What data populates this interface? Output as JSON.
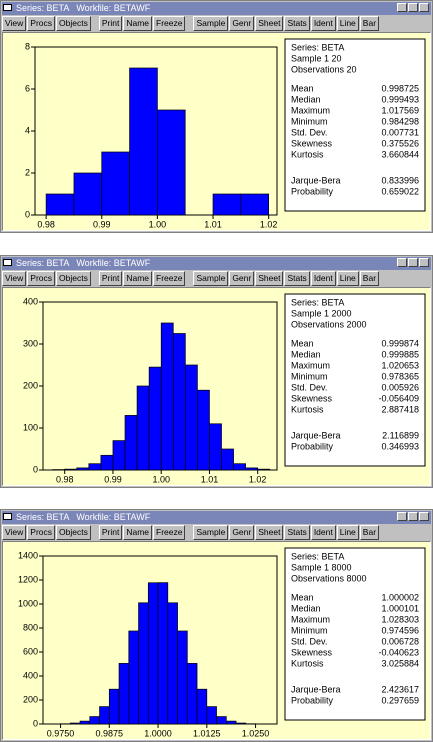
{
  "window_title": "Series: BETA   Workfile: BETAWF",
  "toolbar": [
    "View",
    "Procs",
    "Objects",
    "Print",
    "Name",
    "Freeze",
    "Sample",
    "Genr",
    "Sheet",
    "Stats",
    "Ident",
    "Line",
    "Bar"
  ],
  "windows": [
    {
      "stats": {
        "series": "Series: BETA",
        "sample": "Sample 1 20",
        "observations": "Observations 20",
        "rows": [
          [
            "Mean",
            0.998725
          ],
          [
            "Median",
            0.999493
          ],
          [
            "Maximum",
            1.017569
          ],
          [
            "Minimum",
            0.984298
          ],
          [
            "Std. Dev.",
            0.007731
          ],
          [
            "Skewness",
            0.375526
          ],
          [
            "Kurtosis",
            3.660844
          ]
        ],
        "tests": [
          [
            "Jarque-Bera",
            0.833996
          ],
          [
            "Probability",
            0.659022
          ]
        ]
      }
    },
    {
      "stats": {
        "series": "Series: BETA",
        "sample": "Sample 1 2000",
        "observations": "Observations 2000",
        "rows": [
          [
            "Mean",
            0.999874
          ],
          [
            "Median",
            0.999885
          ],
          [
            "Maximum",
            1.020653
          ],
          [
            "Minimum",
            0.978365
          ],
          [
            "Std. Dev.",
            0.005926
          ],
          [
            "Skewness",
            -0.056409
          ],
          [
            "Kurtosis",
            2.887418
          ]
        ],
        "tests": [
          [
            "Jarque-Bera",
            2.116899
          ],
          [
            "Probability",
            0.346993
          ]
        ]
      }
    },
    {
      "stats": {
        "series": "Series: BETA",
        "sample": "Sample 1 8000",
        "observations": "Observations 8000",
        "rows": [
          [
            "Mean",
            1.000002
          ],
          [
            "Median",
            1.000101
          ],
          [
            "Maximum",
            1.028303
          ],
          [
            "Minimum",
            0.974596
          ],
          [
            "Std. Dev.",
            0.006728
          ],
          [
            "Skewness",
            -0.040623
          ],
          [
            "Kurtosis",
            3.025884
          ]
        ],
        "tests": [
          [
            "Jarque-Bera",
            2.423617
          ],
          [
            "Probability",
            0.297659
          ]
        ]
      }
    }
  ],
  "chart_data": [
    {
      "type": "histogram",
      "color": "#0000ff",
      "bins": [
        0.98,
        0.985,
        0.99,
        0.995,
        1.0,
        1.005,
        1.01,
        1.015,
        1.02
      ],
      "values": [
        1,
        2,
        3,
        7,
        5,
        0,
        1,
        1
      ],
      "xlim": [
        0.978,
        1.0215
      ],
      "xticks": [
        0.98,
        0.99,
        {
          "value": 1,
          "label": "1.00"
        },
        1.01,
        1.02
      ],
      "ylim": [
        0,
        8
      ],
      "yticks": [
        0,
        2,
        4,
        6,
        8
      ]
    },
    {
      "type": "histogram",
      "color": "#0000ff",
      "bins": [
        0.9775,
        0.98,
        0.9825,
        0.985,
        0.9875,
        0.99,
        0.9925,
        0.995,
        0.9975,
        1.0,
        1.0025,
        1.005,
        1.0075,
        1.01,
        1.0125,
        1.015,
        1.0175,
        1.02,
        1.0225
      ],
      "values": [
        1,
        2,
        5,
        15,
        35,
        70,
        130,
        200,
        245,
        350,
        325,
        250,
        190,
        110,
        50,
        15,
        5,
        2
      ],
      "xlim": [
        0.9755,
        1.024
      ],
      "xticks": [
        0.98,
        0.99,
        {
          "value": 1,
          "label": "1.00"
        },
        1.01,
        1.02
      ],
      "ylim": [
        0,
        400
      ],
      "yticks": [
        0,
        100,
        200,
        300,
        400
      ]
    },
    {
      "type": "histogram",
      "color": "#0000ff",
      "bins": [
        0.9725,
        0.975,
        0.9775,
        0.98,
        0.9825,
        0.985,
        0.9875,
        0.99,
        0.9925,
        0.995,
        0.9975,
        1.0,
        1.0025,
        1.005,
        1.0075,
        1.01,
        1.0125,
        1.015,
        1.0175,
        1.02,
        1.0225,
        1.025,
        1.0275,
        1.03
      ],
      "values": [
        1,
        2,
        8,
        24,
        62,
        145,
        290,
        505,
        775,
        1010,
        1177,
        1178,
        1010,
        775,
        505,
        290,
        145,
        62,
        24,
        8,
        2,
        1,
        1
      ],
      "xlim": [
        0.9705,
        1.0305
      ],
      "xticks": [
        {
          "value": 0.975,
          "label": "0.9750"
        },
        0.9875,
        {
          "value": 1,
          "label": "1.0000"
        },
        1.0125,
        {
          "value": 1.025,
          "label": "1.0250"
        }
      ],
      "ylim": [
        0,
        1400
      ],
      "yticks": [
        0,
        200,
        400,
        600,
        800,
        1000,
        1200,
        1400
      ]
    }
  ]
}
